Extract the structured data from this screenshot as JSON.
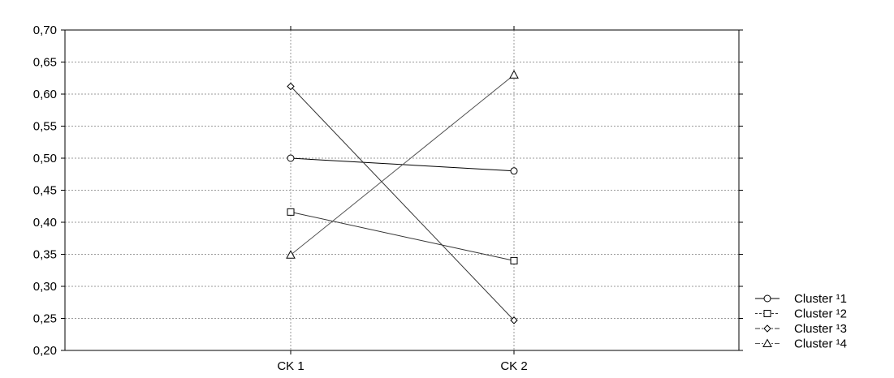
{
  "chart_data": {
    "type": "line",
    "categories": [
      "CK 1",
      "CK 2"
    ],
    "ylim": [
      0.2,
      0.7
    ],
    "yticks": [
      "0,20",
      "0,25",
      "0,30",
      "0,35",
      "0,40",
      "0,45",
      "0,50",
      "0,55",
      "0,60",
      "0,65",
      "0,70"
    ],
    "ytick_values": [
      0.2,
      0.25,
      0.3,
      0.35,
      0.4,
      0.45,
      0.5,
      0.55,
      0.6,
      0.65,
      0.7
    ],
    "grid": true,
    "legend_position": "bottom-right",
    "series": [
      {
        "name": "Cluster ¹1",
        "values": [
          0.5,
          0.48
        ],
        "marker": "circle",
        "dash": "solid",
        "color": "#000000"
      },
      {
        "name": "Cluster ¹2",
        "values": [
          0.416,
          0.34
        ],
        "marker": "square",
        "dash": "dashed",
        "color": "#333333"
      },
      {
        "name": "Cluster ¹3",
        "values": [
          0.612,
          0.247
        ],
        "marker": "diamond",
        "dash": "dashdot",
        "color": "#333333"
      },
      {
        "name": "Cluster ¹4",
        "values": [
          0.349,
          0.63
        ],
        "marker": "triangle",
        "dash": "dashdot",
        "color": "#555555"
      }
    ]
  }
}
